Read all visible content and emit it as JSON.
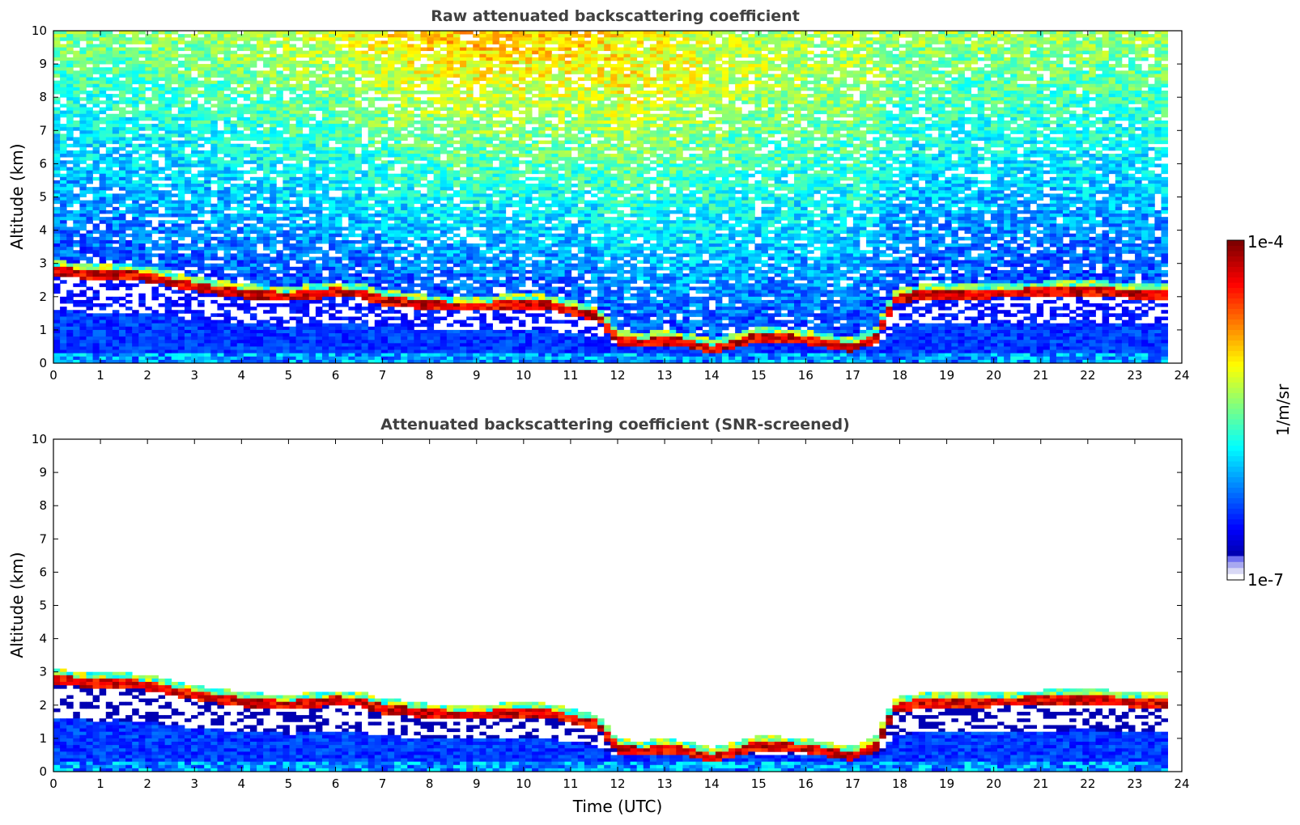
{
  "chart_data": [
    {
      "type": "heatmap",
      "title": "Raw attenuated backscattering coefficient",
      "xlabel": "",
      "ylabel": "Altitude (km)",
      "xlim": [
        0,
        24
      ],
      "ylim": [
        0,
        10
      ],
      "x_ticks": [
        0,
        1,
        2,
        3,
        4,
        5,
        6,
        7,
        8,
        9,
        10,
        11,
        12,
        13,
        14,
        15,
        16,
        17,
        18,
        19,
        20,
        21,
        22,
        23,
        24
      ],
      "y_ticks": [
        0,
        1,
        2,
        3,
        4,
        5,
        6,
        7,
        8,
        9,
        10
      ],
      "data_end_time": 23.7,
      "cloud_layer": {
        "time": [
          0.0,
          0.5,
          1.0,
          1.3,
          2.0,
          3.0,
          4.0,
          5.0,
          6.0,
          6.5,
          7.0,
          8.0,
          9.0,
          10.0,
          10.5,
          11.0,
          11.6,
          12.0,
          12.5,
          13.0,
          13.5,
          14.0,
          14.5,
          15.0,
          16.0,
          17.0,
          17.5,
          17.9,
          18.5,
          19.0,
          20.0,
          21.0,
          22.0,
          22.9
        ],
        "altitude_km": [
          2.7,
          2.6,
          2.55,
          2.6,
          2.5,
          2.2,
          2.0,
          1.9,
          2.05,
          2.0,
          1.8,
          1.65,
          1.6,
          1.7,
          1.65,
          1.5,
          1.3,
          0.6,
          0.5,
          0.6,
          0.5,
          0.3,
          0.5,
          0.7,
          0.6,
          0.35,
          0.7,
          1.8,
          2.0,
          2.0,
          2.0,
          2.05,
          2.1,
          2.0
        ]
      },
      "noise": "raw"
    },
    {
      "type": "heatmap",
      "title": "Attenuated backscattering coefficient (SNR-screened)",
      "xlabel": "Time (UTC)",
      "ylabel": "Altitude (km)",
      "xlim": [
        0,
        24
      ],
      "ylim": [
        0,
        10
      ],
      "x_ticks": [
        0,
        1,
        2,
        3,
        4,
        5,
        6,
        7,
        8,
        9,
        10,
        11,
        12,
        13,
        14,
        15,
        16,
        17,
        18,
        19,
        20,
        21,
        22,
        23,
        24
      ],
      "y_ticks": [
        0,
        1,
        2,
        3,
        4,
        5,
        6,
        7,
        8,
        9,
        10
      ],
      "data_end_time": 23.7,
      "cloud_layer": {
        "time": [
          0.0,
          0.5,
          1.0,
          1.3,
          2.0,
          3.0,
          4.0,
          5.0,
          6.0,
          6.5,
          7.0,
          8.0,
          9.0,
          10.0,
          10.5,
          11.0,
          11.6,
          12.0,
          12.5,
          13.0,
          13.5,
          14.0,
          14.5,
          15.0,
          16.0,
          17.0,
          17.5,
          17.9,
          18.5,
          19.0,
          20.0,
          21.0,
          22.0,
          22.9
        ],
        "altitude_km": [
          2.7,
          2.6,
          2.55,
          2.6,
          2.5,
          2.2,
          2.0,
          1.9,
          2.05,
          2.0,
          1.8,
          1.65,
          1.6,
          1.7,
          1.65,
          1.5,
          1.3,
          0.6,
          0.5,
          0.6,
          0.5,
          0.3,
          0.5,
          0.7,
          0.6,
          0.35,
          0.7,
          1.8,
          2.0,
          2.0,
          2.0,
          2.05,
          2.1,
          2.0
        ]
      },
      "noise": "screened"
    }
  ],
  "colorbar": {
    "max_label": "1e-4",
    "min_label": "1e-7",
    "unit_label": "1/m/sr",
    "colormap": "jet",
    "colors": [
      "#00007f",
      "#0000ff",
      "#007fff",
      "#00ffff",
      "#7fff7f",
      "#ffff00",
      "#ff7f00",
      "#ff0000",
      "#7f0000"
    ],
    "low_colors": [
      "#ffffff",
      "#d8d8f5",
      "#a8a8f0",
      "#7070f0"
    ]
  }
}
